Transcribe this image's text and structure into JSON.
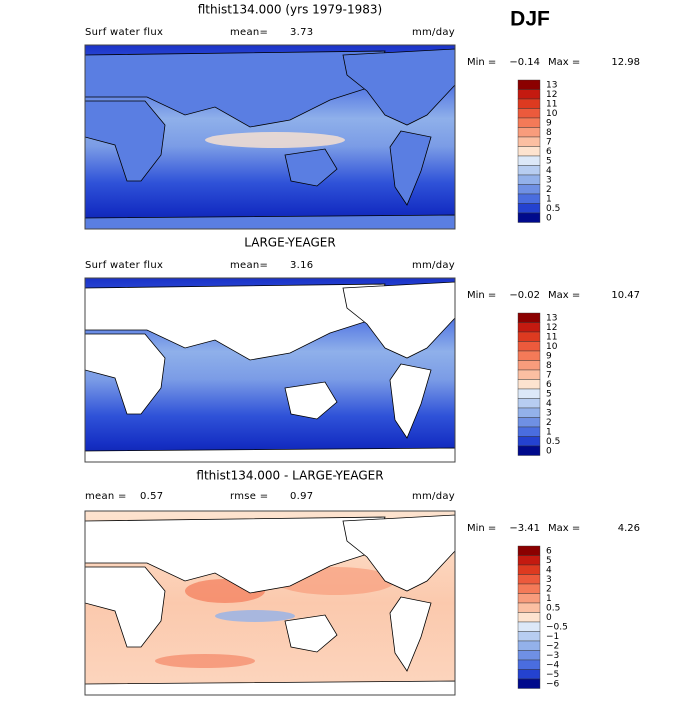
{
  "title": "DJF",
  "panels": [
    {
      "title": "flthist134.000 (yrs 1979-1983)",
      "header": [
        "Surf water flux",
        "mean=",
        "3.73",
        "mm/day"
      ],
      "minmax": [
        "Min =",
        "−0.14",
        "Max =",
        "12.98"
      ],
      "colorbar": {
        "labels": [
          "13",
          "12",
          "11",
          "10",
          "9",
          "8",
          "7",
          "6",
          "5",
          "4",
          "3",
          "2",
          "1",
          "0.5",
          "0"
        ],
        "colors": [
          "#8b0000",
          "#c41a10",
          "#dd3a20",
          "#ec5a3c",
          "#f47a58",
          "#f89c7c",
          "#fbbfa2",
          "#fde3cf",
          "#dce8f8",
          "#b7cdf1",
          "#93b1ea",
          "#6f90e4",
          "#4a6ddf",
          "#2442d0",
          "#000a8c"
        ]
      }
    },
    {
      "title": "LARGE-YEAGER",
      "header": [
        "Surf water flux",
        "mean=",
        "3.16",
        "mm/day"
      ],
      "minmax": [
        "Min =",
        "−0.02",
        "Max =",
        "10.47"
      ],
      "colorbar": {
        "labels": [
          "13",
          "12",
          "11",
          "10",
          "9",
          "8",
          "7",
          "6",
          "5",
          "4",
          "3",
          "2",
          "1",
          "0.5",
          "0"
        ],
        "colors": [
          "#8b0000",
          "#c41a10",
          "#dd3a20",
          "#ec5a3c",
          "#f47a58",
          "#f89c7c",
          "#fbbfa2",
          "#fde3cf",
          "#dce8f8",
          "#b7cdf1",
          "#93b1ea",
          "#6f90e4",
          "#4a6ddf",
          "#2442d0",
          "#000a8c"
        ]
      }
    },
    {
      "title": "flthist134.000 - LARGE-YEAGER",
      "header": [
        "mean =",
        "0.57",
        "rmse =",
        "0.97",
        "mm/day"
      ],
      "minmax": [
        "Min =",
        "−3.41",
        "Max =",
        "4.26"
      ],
      "colorbar": {
        "labels": [
          "6",
          "5",
          "4",
          "3",
          "2",
          "1",
          "0.5",
          "0",
          "−0.5",
          "−1",
          "−2",
          "−3",
          "−4",
          "−5",
          "−6"
        ],
        "colors": [
          "#8b0000",
          "#c41a10",
          "#dd3a20",
          "#ec5a3c",
          "#f47a58",
          "#f89c7c",
          "#fbbfa2",
          "#fde3cf",
          "#dce8f8",
          "#b7cdf1",
          "#93b1ea",
          "#6f90e4",
          "#4a6ddf",
          "#2442d0",
          "#000a8c"
        ]
      }
    }
  ]
}
